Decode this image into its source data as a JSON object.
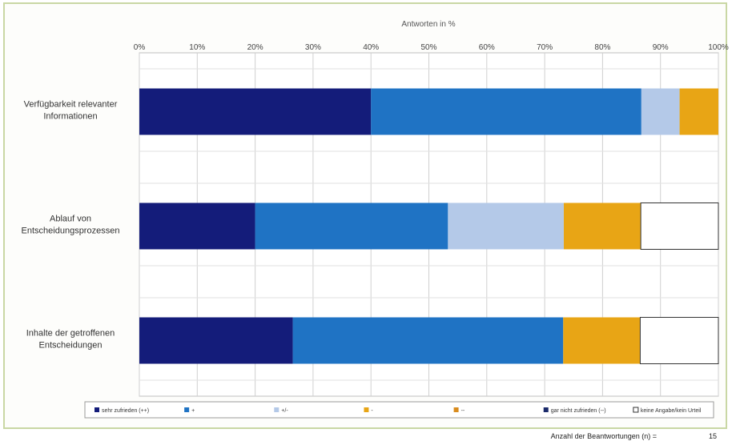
{
  "chart_data": {
    "type": "bar",
    "orientation": "horizontal",
    "stacked": true,
    "axis_title": "Antworten in %",
    "ticks": [
      "0%",
      "10%",
      "20%",
      "30%",
      "40%",
      "50%",
      "60%",
      "70%",
      "80%",
      "90%",
      "100%"
    ],
    "xlim": [
      0,
      100
    ],
    "grid": true,
    "legend_position": "bottom",
    "categories": [
      "Verfügbarkeit relevanter Informationen",
      "Ablauf von Entscheidungsprozessen",
      "Inhalte der getroffenen Entscheidungen"
    ],
    "series": [
      {
        "name": "sehr zufrieden (++)",
        "color": "#141c7a",
        "values": [
          40,
          20,
          26.5
        ]
      },
      {
        "name": "+",
        "color": "#1f73c4",
        "values": [
          46.7,
          33.3,
          46.7
        ]
      },
      {
        "name": "+/-",
        "color": "#b4c9e8",
        "values": [
          6.6,
          20,
          0
        ]
      },
      {
        "name": "-",
        "color": "#e8a515",
        "values": [
          6.7,
          13.3,
          13.3
        ]
      },
      {
        "name": "--",
        "color": "#d98c1e",
        "values": [
          0,
          0,
          0
        ]
      },
      {
        "name": "gar nicht zufrieden (--)",
        "color": "#1a2a6a",
        "values": [
          0,
          0,
          0
        ]
      },
      {
        "name": "keine Angabe/kein Urteil",
        "color": "#ffffff",
        "values": [
          0,
          13.4,
          13.5
        ]
      }
    ]
  },
  "footer": {
    "label": "Anzahl der Beantwortungen (n) =",
    "value": "15"
  }
}
